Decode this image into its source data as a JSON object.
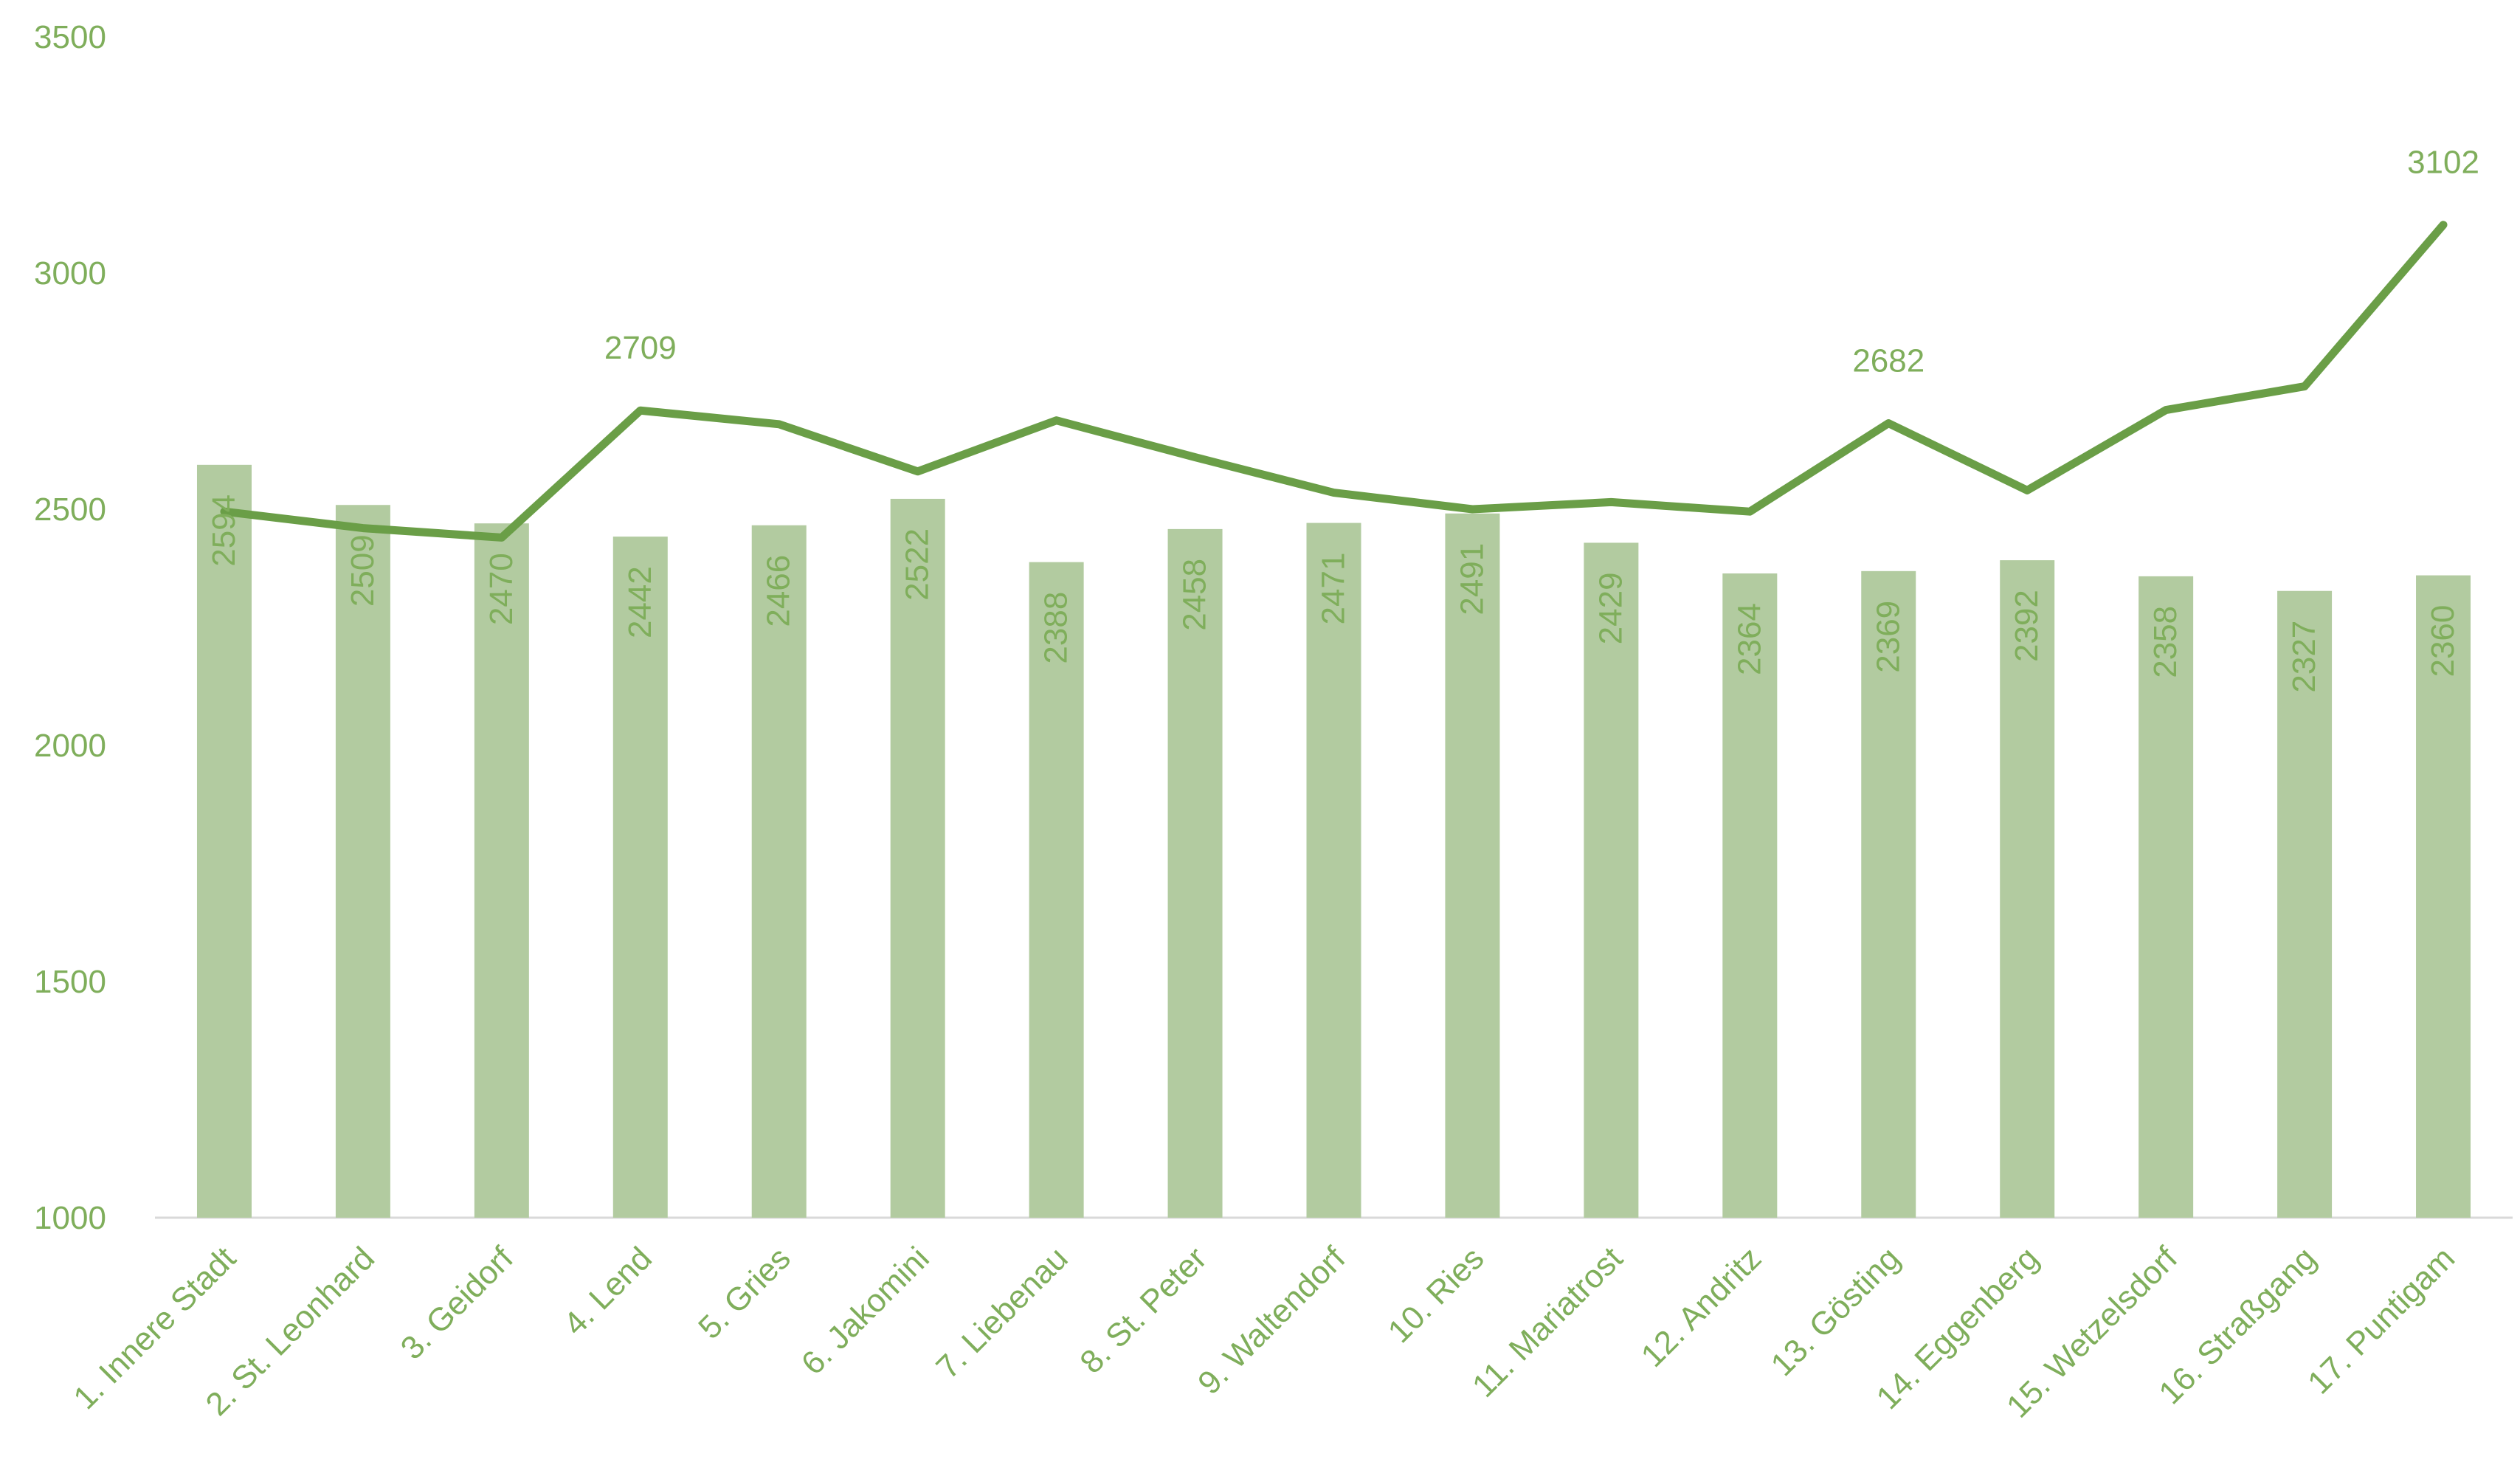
{
  "colors": {
    "bar": "#b2cba0",
    "line": "#6a9e47",
    "text": "#7fae5b",
    "axis": "#d9d9d9"
  },
  "chart_data": {
    "type": "bar",
    "title": "",
    "xlabel": "",
    "ylabel": "",
    "ylim": [
      1000,
      3500
    ],
    "yticks": [
      "1000",
      "1500",
      "2000",
      "2500",
      "3000",
      "3500"
    ],
    "grid": false,
    "legend": "none",
    "categories": [
      "1. Innere Stadt",
      "2. St. Leonhard",
      "3. Geidorf",
      "4. Lend",
      "5. Gries",
      "6. Jakomini",
      "7. Liebenau",
      "8. St. Peter",
      "9. Waltendorf",
      "10. Ries",
      "11. Mariatrost",
      "12. Andritz",
      "13. Gösting",
      "14. Eggenberg",
      "15. Wetzelsdorf",
      "16. Straßgang",
      "17. Puntigam"
    ],
    "series": [
      {
        "type": "bar",
        "values": [
          2594,
          2509,
          2470,
          2442,
          2466,
          2522,
          2388,
          2458,
          2471,
          2491,
          2429,
          2364,
          2369,
          2392,
          2358,
          2327,
          2360
        ],
        "data_labels": [
          "2594",
          "2509",
          "2470",
          "2442",
          "2466",
          "2522",
          "2388",
          "2458",
          "2471",
          "2491",
          "2429",
          "2364",
          "2369",
          "2392",
          "2358",
          "2327",
          "2360"
        ]
      },
      {
        "type": "line",
        "values": [
          2495,
          2460,
          2440,
          2709,
          2680,
          2580,
          2688,
          2610,
          2535,
          2500,
          2515,
          2495,
          2682,
          2540,
          2710,
          2760,
          3102
        ],
        "data_labels": [
          "",
          "",
          "",
          "2709",
          "",
          "",
          "",
          "",
          "",
          "",
          "",
          "",
          "2682",
          "",
          "",
          "",
          "3102"
        ]
      }
    ]
  }
}
